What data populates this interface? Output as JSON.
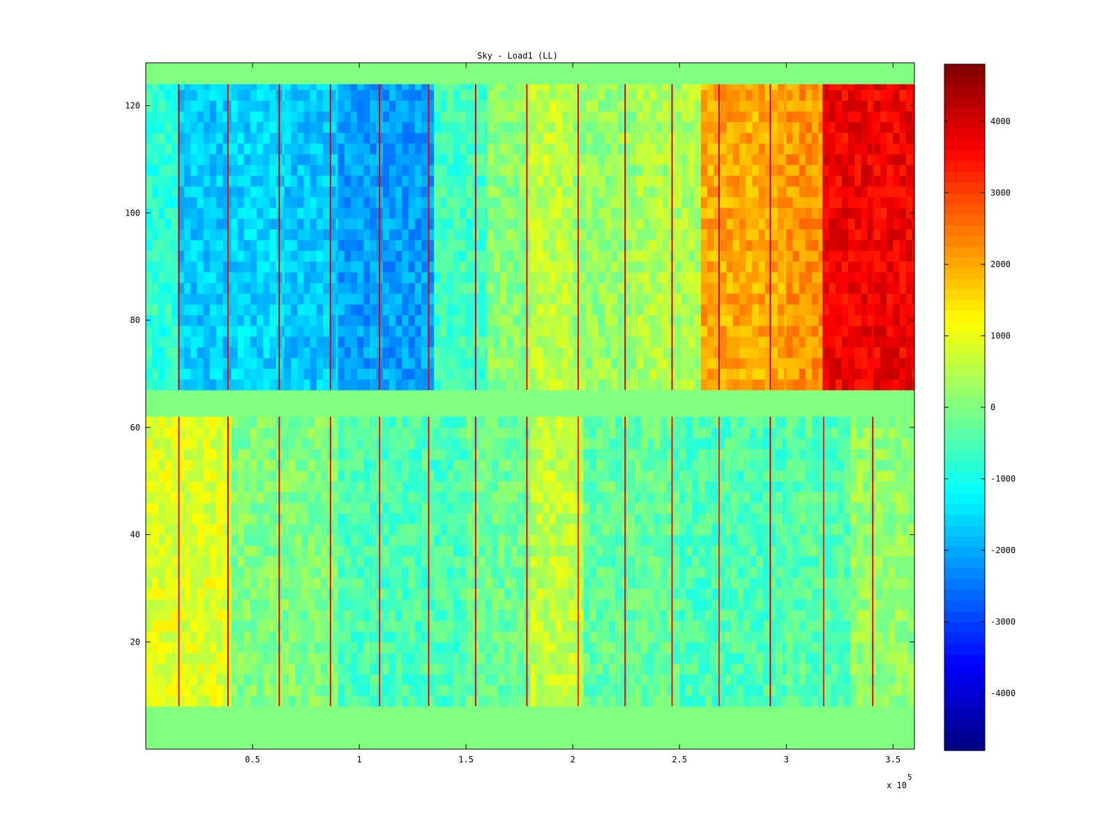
{
  "chart_data": {
    "type": "heatmap",
    "title": "Sky - Load1 (LL)",
    "xlabel": "",
    "ylabel": "",
    "x_multiplier_label": "x 10",
    "x_multiplier_exponent": "5",
    "x_multiplier": 100000,
    "xlim": [
      0,
      3.6
    ],
    "ylim": [
      0,
      128
    ],
    "xticks": [
      {
        "value": 0.5,
        "label": "0.5"
      },
      {
        "value": 1,
        "label": "1"
      },
      {
        "value": 1.5,
        "label": "1.5"
      },
      {
        "value": 2,
        "label": "2"
      },
      {
        "value": 2.5,
        "label": "2.5"
      },
      {
        "value": 3,
        "label": "3"
      },
      {
        "value": 3.5,
        "label": "3.5"
      }
    ],
    "yticks": [
      {
        "value": 20,
        "label": "20"
      },
      {
        "value": 40,
        "label": "40"
      },
      {
        "value": 60,
        "label": "60"
      },
      {
        "value": 80,
        "label": "80"
      },
      {
        "value": 100,
        "label": "100"
      },
      {
        "value": 120,
        "label": "120"
      }
    ],
    "colormap": "jet",
    "clim": [
      -4800,
      4800
    ],
    "colorbar_ticks": [
      {
        "value": 4000,
        "label": "4000"
      },
      {
        "value": 3000,
        "label": "3000"
      },
      {
        "value": 2000,
        "label": "2000"
      },
      {
        "value": 1000,
        "label": "1000"
      },
      {
        "value": 0,
        "label": "0"
      },
      {
        "value": -1000,
        "label": "-1000"
      },
      {
        "value": -2000,
        "label": "-2000"
      },
      {
        "value": -3000,
        "label": "-3000"
      },
      {
        "value": -4000,
        "label": "-4000"
      }
    ],
    "zero_value_rows": [
      [
        0,
        8
      ],
      [
        62,
        67
      ],
      [
        124,
        128
      ]
    ],
    "upper_band": {
      "rows": [
        67,
        124
      ],
      "segment_values_x1e5": [
        {
          "x": [
            0,
            0.15
          ],
          "value": -800
        },
        {
          "x": [
            0.15,
            0.4
          ],
          "value": -1700
        },
        {
          "x": [
            0.4,
            0.65
          ],
          "value": -1600
        },
        {
          "x": [
            0.65,
            0.9
          ],
          "value": -1700
        },
        {
          "x": [
            0.9,
            1.35
          ],
          "value": -2100
        },
        {
          "x": [
            1.35,
            1.6
          ],
          "value": -600
        },
        {
          "x": [
            1.6,
            1.8
          ],
          "value": 100
        },
        {
          "x": [
            1.8,
            2.0
          ],
          "value": 600
        },
        {
          "x": [
            2.0,
            2.3
          ],
          "value": 200
        },
        {
          "x": [
            2.3,
            2.6
          ],
          "value": 400
        },
        {
          "x": [
            2.6,
            3.0
          ],
          "value": 2000
        },
        {
          "x": [
            3.0,
            3.17
          ],
          "value": 2200
        },
        {
          "x": [
            3.17,
            3.6
          ],
          "value": 3700
        }
      ]
    },
    "lower_band": {
      "rows": [
        8,
        62
      ],
      "segment_values_x1e5": [
        {
          "x": [
            0,
            0.4
          ],
          "value": 900
        },
        {
          "x": [
            0.4,
            0.9
          ],
          "value": 0
        },
        {
          "x": [
            0.9,
            1.5
          ],
          "value": -500
        },
        {
          "x": [
            1.5,
            1.8
          ],
          "value": -200
        },
        {
          "x": [
            1.8,
            2.05
          ],
          "value": 600
        },
        {
          "x": [
            2.05,
            2.5
          ],
          "value": -300
        },
        {
          "x": [
            2.5,
            3.0
          ],
          "value": -500
        },
        {
          "x": [
            3.0,
            3.3
          ],
          "value": -400
        },
        {
          "x": [
            3.3,
            3.6
          ],
          "value": 200
        }
      ]
    },
    "spike_columns_x1e5": [
      0.155,
      0.385,
      0.625,
      0.865,
      1.095,
      1.325,
      1.545,
      1.785,
      2.025,
      2.245,
      2.465,
      2.685,
      2.925,
      3.175,
      3.405
    ],
    "spike_value": 4000
  }
}
